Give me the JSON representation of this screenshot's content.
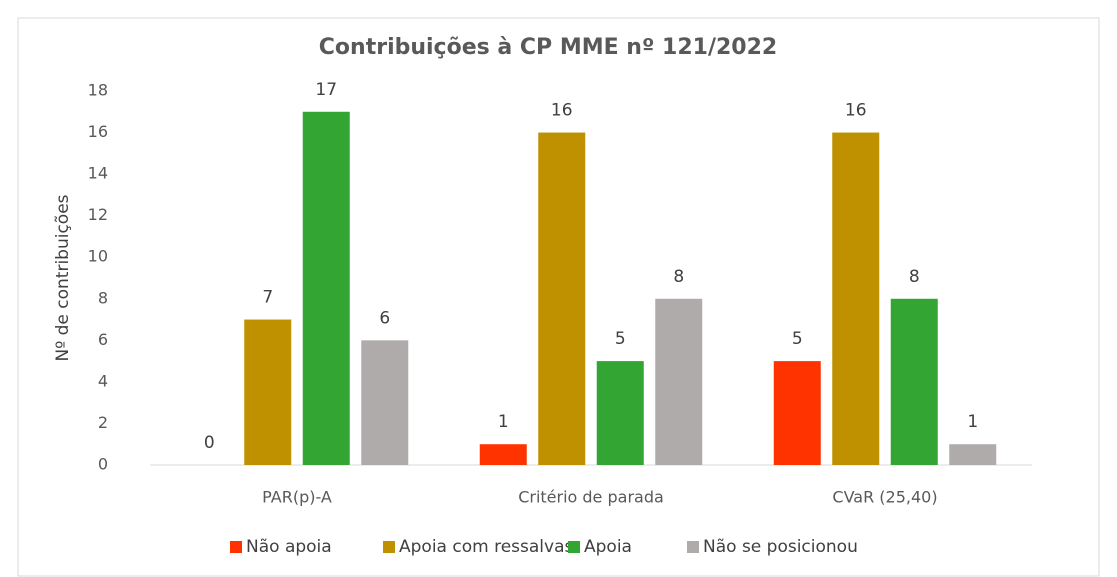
{
  "chart_data": {
    "type": "bar",
    "title": "Contribuições à CP MME nº 121/2022",
    "y_label": "Nº de contribuições",
    "categories": [
      "PAR(p)-A",
      "Critério de parada",
      "CVaR (25,40)"
    ],
    "series": [
      {
        "name": "Não apoia",
        "color": "#ff3300",
        "values": [
          0,
          1,
          5
        ]
      },
      {
        "name": "Apoia com ressalvas",
        "color": "#bf9000",
        "values": [
          7,
          16,
          16
        ]
      },
      {
        "name": "Apoia",
        "color": "#33a532",
        "values": [
          17,
          5,
          8
        ]
      },
      {
        "name": "Não se posicionou",
        "color": "#afabab",
        "values": [
          6,
          8,
          1
        ]
      }
    ],
    "ylim": [
      0,
      18
    ],
    "yticks": [
      0,
      2,
      4,
      6,
      8,
      10,
      12,
      14,
      16,
      18
    ],
    "grid": false,
    "legend": "bottom"
  }
}
